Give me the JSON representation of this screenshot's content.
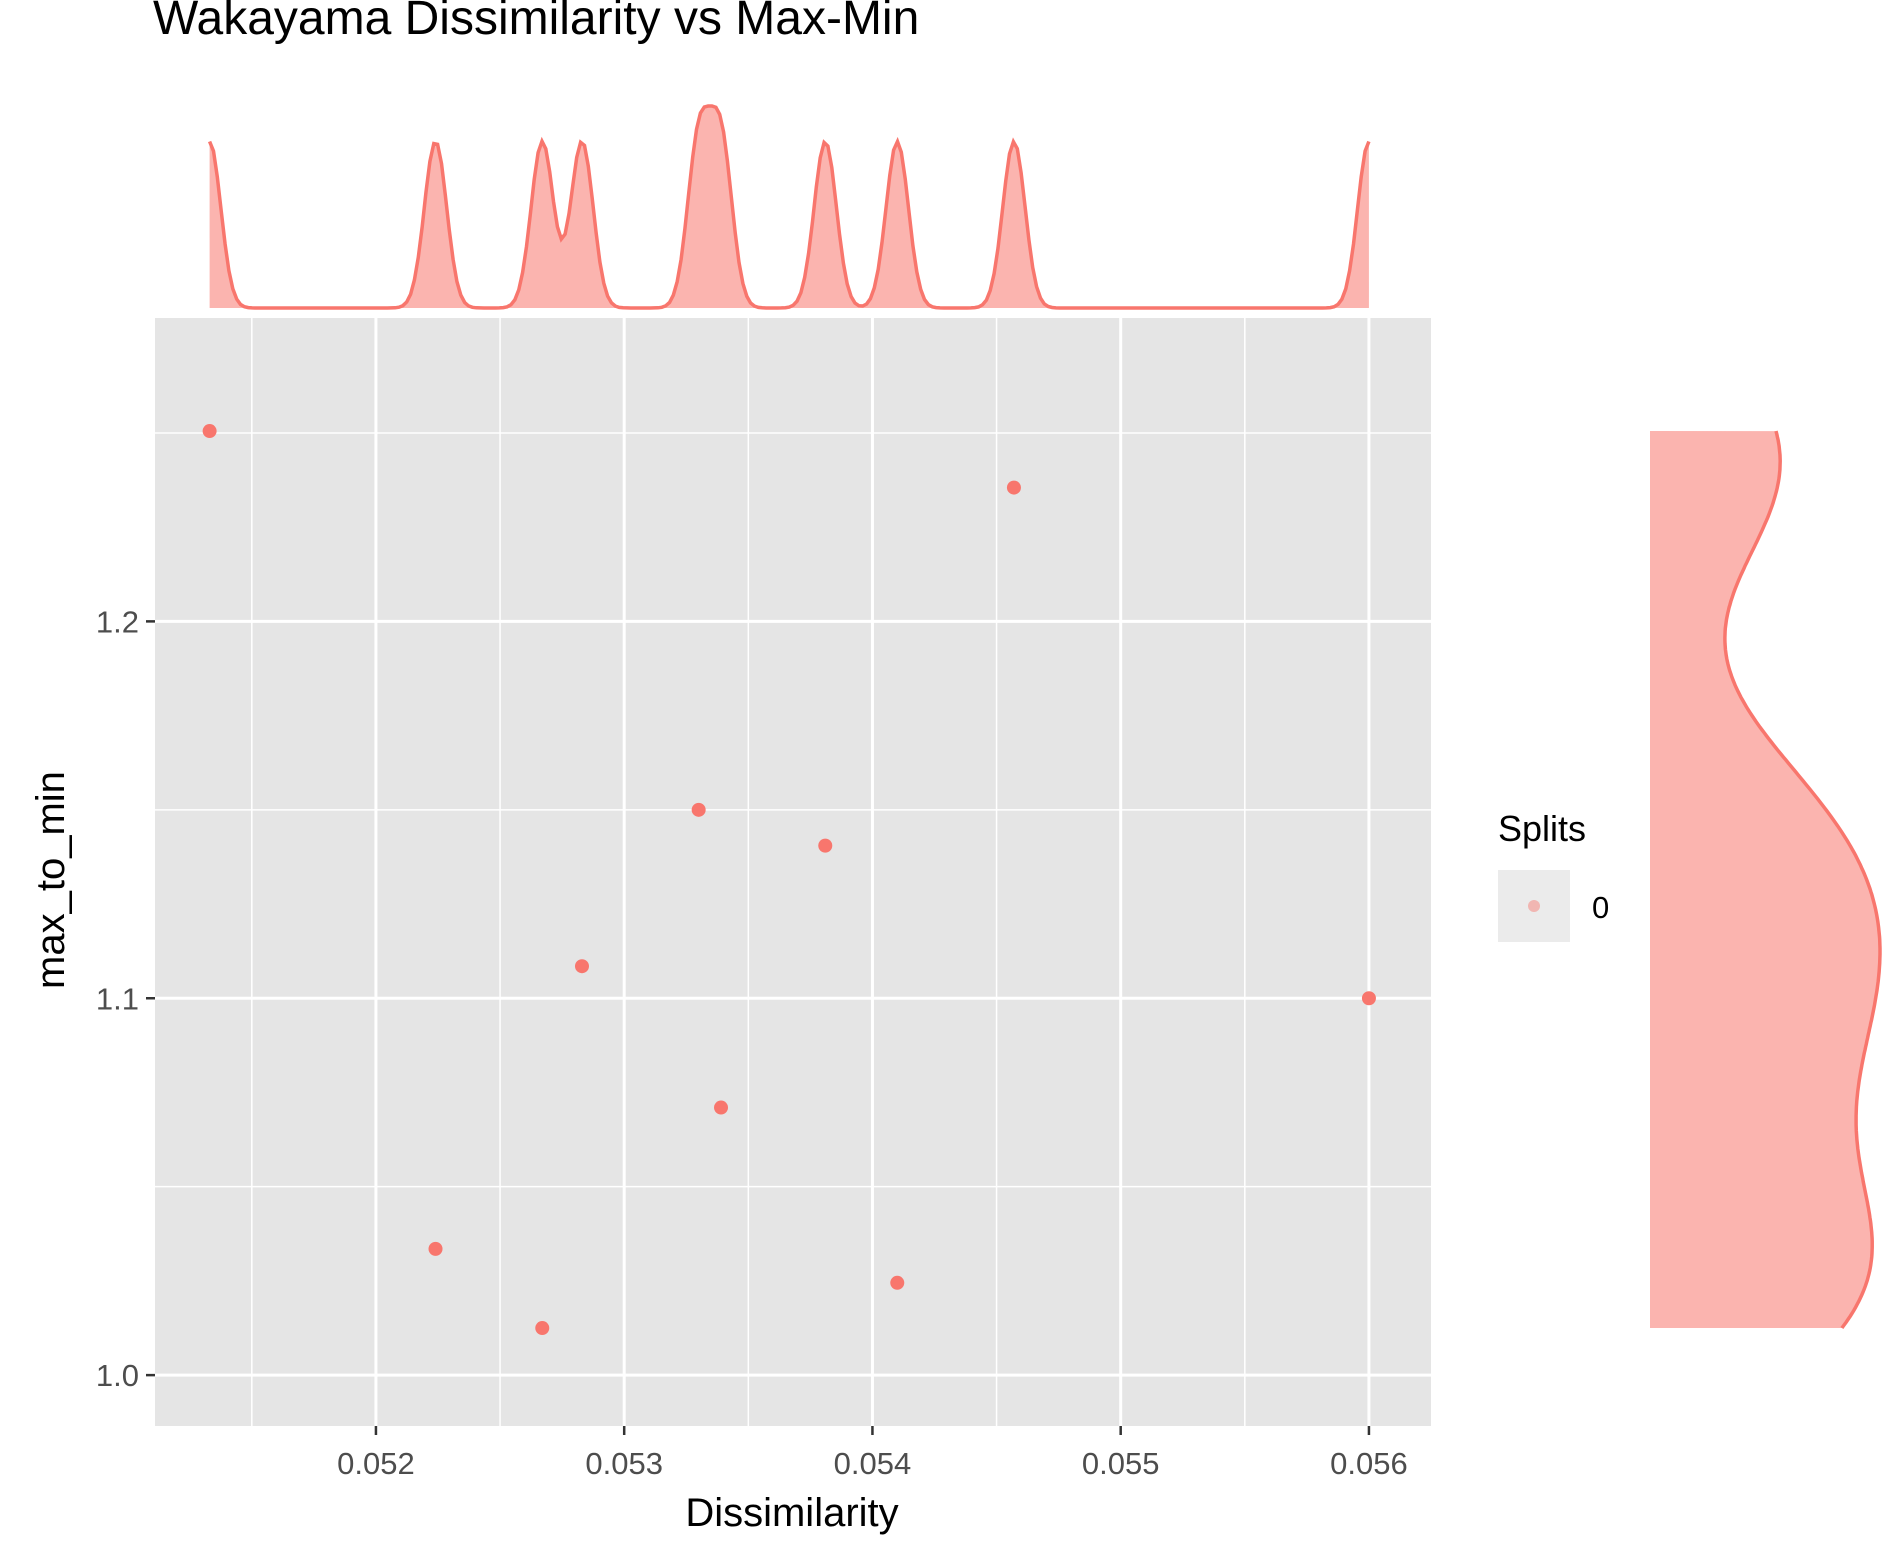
{
  "chart_data": {
    "type": "scatter",
    "title": "Wakayama Dissimilarity vs Max-Min",
    "xlabel": "Dissimilarity",
    "ylabel": "max_to_min",
    "xlim": [
      0.05111,
      0.05625
    ],
    "ylim": [
      0.9865,
      1.2805
    ],
    "x_ticks": [
      "0.052",
      "0.053",
      "0.054",
      "0.055",
      "0.056"
    ],
    "x_tick_values": [
      0.052,
      0.053,
      0.054,
      0.055,
      0.056
    ],
    "y_ticks": [
      "1.0",
      "1.1",
      "1.2"
    ],
    "y_tick_values": [
      1.0,
      1.1,
      1.2
    ],
    "grid": true,
    "legend": {
      "title": "Splits",
      "entries": [
        "0"
      ],
      "position": "right"
    },
    "marginal": {
      "top": "density",
      "right": "density"
    },
    "series": [
      {
        "name": "0",
        "color": "#f8766d",
        "points": [
          {
            "x": 0.05133,
            "y": 1.2505
          },
          {
            "x": 0.05224,
            "y": 1.0335
          },
          {
            "x": 0.05267,
            "y": 1.0125
          },
          {
            "x": 0.05283,
            "y": 1.1085
          },
          {
            "x": 0.0533,
            "y": 1.15
          },
          {
            "x": 0.05339,
            "y": 1.071
          },
          {
            "x": 0.05381,
            "y": 1.1405
          },
          {
            "x": 0.0541,
            "y": 1.0245
          },
          {
            "x": 0.05457,
            "y": 1.2355
          },
          {
            "x": 0.056,
            "y": 1.1
          }
        ]
      }
    ]
  },
  "colors": {
    "panel": "#e5e5e5",
    "grid": "#ffffff",
    "point": "#f8766d",
    "density_fill": "#f8766d",
    "density_line": "#f8766d"
  }
}
